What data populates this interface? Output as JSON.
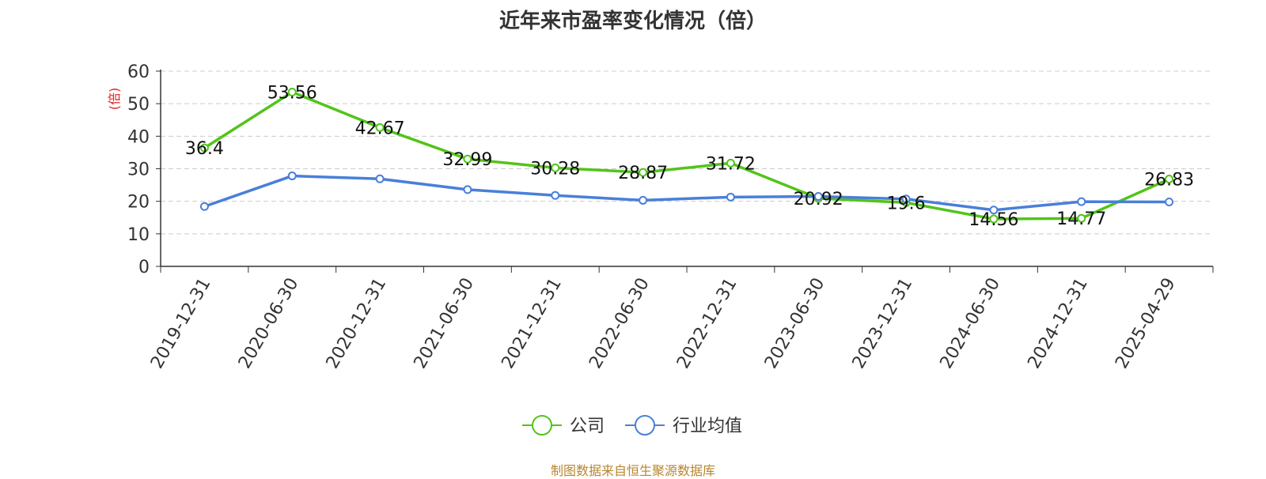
{
  "chart_data": {
    "type": "line",
    "title": "近年来市盈率变化情况（倍）",
    "ylabel": "(倍)",
    "xlabel": "",
    "ylim": [
      0,
      60
    ],
    "yticks": [
      0,
      10,
      20,
      30,
      40,
      50,
      60
    ],
    "grid": true,
    "legend_position": "bottom-center",
    "categories": [
      "2019-12-31",
      "2020-06-30",
      "2020-12-31",
      "2021-06-30",
      "2021-12-31",
      "2022-06-30",
      "2022-12-31",
      "2023-06-30",
      "2023-12-31",
      "2024-06-30",
      "2024-12-31",
      "2025-04-29"
    ],
    "series": [
      {
        "name": "公司",
        "color": "#52c41a",
        "show_labels": true,
        "values": [
          36.4,
          53.56,
          42.67,
          32.99,
          30.28,
          28.87,
          31.72,
          20.92,
          19.6,
          14.56,
          14.77,
          26.83
        ]
      },
      {
        "name": "行业均值",
        "color": "#4a7fd9",
        "show_labels": false,
        "values": [
          18.4,
          27.8,
          26.9,
          23.6,
          21.8,
          20.3,
          21.3,
          21.5,
          20.7,
          17.3,
          19.9,
          19.8
        ]
      }
    ],
    "ylabel_color": "#e02020",
    "source": "制图数据来自恒生聚源数据库"
  }
}
